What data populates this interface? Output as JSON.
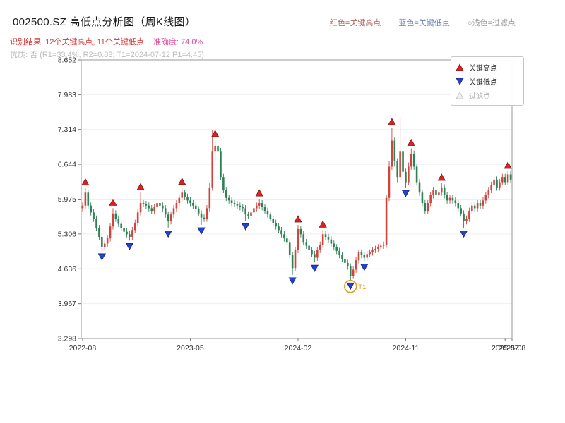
{
  "header": {
    "title": "002500.SZ 高低点分析图（周K线图）",
    "note_high": "红色=关键高点",
    "note_low": "蓝色=关键低点",
    "note_filtered": "○浅色=过滤点",
    "result_text": "识别结果: 12个关键高点, 11个关键低点",
    "accuracy_text": "准确度: 74.0%",
    "quality_text": "优质: 否 (R1=33.4%, R2=0.83; T1=2024-07-12 P1=4.45)"
  },
  "colors": {
    "result": "#d43636",
    "accuracy": "#df4e9b",
    "quality": "#bcbcbc",
    "note_high": "#b4605a",
    "note_low": "#6d80b8",
    "note_filtered": "#9a9a9a"
  },
  "chart_data": {
    "type": "candlestick",
    "symbol": "002500.SZ",
    "period": "weekly",
    "title": "002500.SZ 高低点分析图（周K线图）",
    "stats": {
      "key_highs_count": 12,
      "key_lows_count": 11,
      "accuracy_pct": 74.0,
      "premium": "否",
      "r1_pct": 33.4,
      "r2": 0.83,
      "t1_date": "2024-07-12",
      "p1": 4.45
    },
    "ylim": [
      3.298,
      8.652
    ],
    "y_ticks": [
      "8.652",
      "7.983",
      "7.314",
      "6.644",
      "5.975",
      "5.306",
      "4.636",
      "3.967",
      "3.298"
    ],
    "x_ticks": [
      {
        "week": 0,
        "label": "2022-08"
      },
      {
        "week": 39,
        "label": "2023-05"
      },
      {
        "week": 78,
        "label": "2024-02"
      },
      {
        "week": 117,
        "label": "2024-11"
      },
      {
        "week": 153,
        "label": "2025-07"
      },
      {
        "week": 156,
        "label": "2025-08"
      }
    ],
    "legend": [
      {
        "label": "关键高点",
        "type": "high"
      },
      {
        "label": "关键低点",
        "type": "low"
      },
      {
        "label": "过滤点",
        "type": "filtered"
      }
    ],
    "key_high_weeks": [
      1,
      11,
      21,
      36,
      48,
      64,
      78,
      87,
      112,
      119,
      130,
      154
    ],
    "key_low_weeks": [
      7,
      17,
      31,
      43,
      59,
      76,
      84,
      97,
      102,
      117,
      138
    ],
    "filtered_point": {
      "week": 97,
      "label": "T1",
      "value": 4.45
    },
    "colors": {
      "up": "#d1443c",
      "down": "#2e8055",
      "key_high": "#e02020",
      "key_low": "#2244cc",
      "filtered_fill": "#f2f2f2",
      "filtered_edge": "#bbbbbb",
      "annotation": "#e39a2d",
      "grid": "#efefef",
      "frame": "#9a9a9a",
      "tick_text": "#333333"
    },
    "candles": [
      [
        5.8,
        5.91,
        5.74,
        5.85
      ],
      [
        5.85,
        6.19,
        5.79,
        6.1
      ],
      [
        6.1,
        6.16,
        5.79,
        5.85
      ],
      [
        5.85,
        5.91,
        5.66,
        5.72
      ],
      [
        5.72,
        5.78,
        5.54,
        5.6
      ],
      [
        5.6,
        5.66,
        5.36,
        5.42
      ],
      [
        5.42,
        5.48,
        5.19,
        5.25
      ],
      [
        5.25,
        5.31,
        4.98,
        5.05
      ],
      [
        5.05,
        5.18,
        4.99,
        5.12
      ],
      [
        5.12,
        5.28,
        5.06,
        5.22
      ],
      [
        5.22,
        5.51,
        5.16,
        5.45
      ],
      [
        5.45,
        5.8,
        5.39,
        5.7
      ],
      [
        5.7,
        5.76,
        5.54,
        5.6
      ],
      [
        5.6,
        5.66,
        5.44,
        5.5
      ],
      [
        5.5,
        5.56,
        5.36,
        5.42
      ],
      [
        5.42,
        5.48,
        5.29,
        5.35
      ],
      [
        5.35,
        5.41,
        5.24,
        5.3
      ],
      [
        5.3,
        5.36,
        5.18,
        5.25
      ],
      [
        5.25,
        5.44,
        5.19,
        5.38
      ],
      [
        5.38,
        5.58,
        5.32,
        5.52
      ],
      [
        5.52,
        5.78,
        5.46,
        5.72
      ],
      [
        5.72,
        6.1,
        5.66,
        5.9
      ],
      [
        5.9,
        5.97,
        5.82,
        5.88
      ],
      [
        5.88,
        5.94,
        5.79,
        5.85
      ],
      [
        5.85,
        5.91,
        5.74,
        5.8
      ],
      [
        5.8,
        5.86,
        5.69,
        5.75
      ],
      [
        5.75,
        5.88,
        5.69,
        5.82
      ],
      [
        5.82,
        5.96,
        5.76,
        5.9
      ],
      [
        5.9,
        5.96,
        5.79,
        5.85
      ],
      [
        5.85,
        5.91,
        5.74,
        5.8
      ],
      [
        5.8,
        5.86,
        5.62,
        5.68
      ],
      [
        5.68,
        5.74,
        5.42,
        5.55
      ],
      [
        5.55,
        5.74,
        5.49,
        5.68
      ],
      [
        5.68,
        5.86,
        5.62,
        5.8
      ],
      [
        5.8,
        5.96,
        5.74,
        5.9
      ],
      [
        5.9,
        6.06,
        5.84,
        6.0
      ],
      [
        6.0,
        6.2,
        5.94,
        6.1
      ],
      [
        6.1,
        6.16,
        5.96,
        6.02
      ],
      [
        6.02,
        6.08,
        5.89,
        5.95
      ],
      [
        5.95,
        6.01,
        5.84,
        5.9
      ],
      [
        5.9,
        5.96,
        5.79,
        5.85
      ],
      [
        5.85,
        5.91,
        5.72,
        5.78
      ],
      [
        5.78,
        5.84,
        5.64,
        5.7
      ],
      [
        5.7,
        5.76,
        5.48,
        5.62
      ],
      [
        5.62,
        5.68,
        5.54,
        5.6
      ],
      [
        5.6,
        5.86,
        5.54,
        5.8
      ],
      [
        5.8,
        6.28,
        5.74,
        6.2
      ],
      [
        6.2,
        7.3,
        6.14,
        6.9
      ],
      [
        6.9,
        7.12,
        6.7,
        7.0
      ],
      [
        7.0,
        7.06,
        6.75,
        6.9
      ],
      [
        6.9,
        6.96,
        6.34,
        6.4
      ],
      [
        6.4,
        6.46,
        6.09,
        6.15
      ],
      [
        6.15,
        6.21,
        5.94,
        6.0
      ],
      [
        6.0,
        6.06,
        5.89,
        5.95
      ],
      [
        5.95,
        6.01,
        5.84,
        5.9
      ],
      [
        5.9,
        5.96,
        5.82,
        5.88
      ],
      [
        5.88,
        5.94,
        5.79,
        5.85
      ],
      [
        5.85,
        5.91,
        5.76,
        5.82
      ],
      [
        5.82,
        5.88,
        5.74,
        5.8
      ],
      [
        5.8,
        5.86,
        5.56,
        5.68
      ],
      [
        5.68,
        5.74,
        5.59,
        5.65
      ],
      [
        5.65,
        5.78,
        5.59,
        5.72
      ],
      [
        5.72,
        5.86,
        5.66,
        5.8
      ],
      [
        5.8,
        5.91,
        5.74,
        5.85
      ],
      [
        5.85,
        5.98,
        5.79,
        5.9
      ],
      [
        5.9,
        5.96,
        5.76,
        5.82
      ],
      [
        5.82,
        5.88,
        5.69,
        5.75
      ],
      [
        5.75,
        5.81,
        5.62,
        5.68
      ],
      [
        5.68,
        5.74,
        5.54,
        5.6
      ],
      [
        5.6,
        5.66,
        5.46,
        5.52
      ],
      [
        5.52,
        5.58,
        5.39,
        5.45
      ],
      [
        5.45,
        5.51,
        5.32,
        5.38
      ],
      [
        5.38,
        5.44,
        5.24,
        5.3
      ],
      [
        5.3,
        5.36,
        5.16,
        5.22
      ],
      [
        5.22,
        5.28,
        5.09,
        5.15
      ],
      [
        5.15,
        5.21,
        4.84,
        4.9
      ],
      [
        4.9,
        4.96,
        4.52,
        4.65
      ],
      [
        4.65,
        5.06,
        4.59,
        5.0
      ],
      [
        5.0,
        5.48,
        4.94,
        5.4
      ],
      [
        5.4,
        5.46,
        5.24,
        5.3
      ],
      [
        5.3,
        5.36,
        5.09,
        5.15
      ],
      [
        5.15,
        5.21,
        5.02,
        5.08
      ],
      [
        5.08,
        5.14,
        4.94,
        5.0
      ],
      [
        5.0,
        5.06,
        4.86,
        4.92
      ],
      [
        4.92,
        4.98,
        4.76,
        4.85
      ],
      [
        4.85,
        5.06,
        4.79,
        5.0
      ],
      [
        5.0,
        5.16,
        4.94,
        5.1
      ],
      [
        5.1,
        5.38,
        5.04,
        5.3
      ],
      [
        5.3,
        5.36,
        5.19,
        5.25
      ],
      [
        5.25,
        5.31,
        5.14,
        5.2
      ],
      [
        5.2,
        5.26,
        5.06,
        5.12
      ],
      [
        5.12,
        5.18,
        4.99,
        5.05
      ],
      [
        5.05,
        5.11,
        4.92,
        4.98
      ],
      [
        4.98,
        5.04,
        4.84,
        4.9
      ],
      [
        4.9,
        4.96,
        4.76,
        4.82
      ],
      [
        4.82,
        4.88,
        4.69,
        4.75
      ],
      [
        4.75,
        4.81,
        4.62,
        4.68
      ],
      [
        4.68,
        4.74,
        4.42,
        4.5
      ],
      [
        4.5,
        4.68,
        4.44,
        4.62
      ],
      [
        4.62,
        4.86,
        4.56,
        4.8
      ],
      [
        4.8,
        5.01,
        4.74,
        4.95
      ],
      [
        4.95,
        5.01,
        4.84,
        4.9
      ],
      [
        4.9,
        4.96,
        4.78,
        4.85
      ],
      [
        4.85,
        4.98,
        4.79,
        4.92
      ],
      [
        4.92,
        5.01,
        4.86,
        4.95
      ],
      [
        4.95,
        5.06,
        4.89,
        5.0
      ],
      [
        5.0,
        5.08,
        4.94,
        5.02
      ],
      [
        5.02,
        5.11,
        4.96,
        5.05
      ],
      [
        5.05,
        5.14,
        4.99,
        5.08
      ],
      [
        5.08,
        5.16,
        5.02,
        5.1
      ],
      [
        5.1,
        6.06,
        5.04,
        6.0
      ],
      [
        6.0,
        6.7,
        5.94,
        6.6
      ],
      [
        6.6,
        7.35,
        6.54,
        7.1
      ],
      [
        7.1,
        7.16,
        6.6,
        6.7
      ],
      [
        6.7,
        6.76,
        6.3,
        6.4
      ],
      [
        6.4,
        7.52,
        6.34,
        6.9
      ],
      [
        6.9,
        6.96,
        6.4,
        6.5
      ],
      [
        6.5,
        6.56,
        6.2,
        6.3
      ],
      [
        6.3,
        6.68,
        6.24,
        6.6
      ],
      [
        6.6,
        6.95,
        6.54,
        6.85
      ],
      [
        6.85,
        6.91,
        6.54,
        6.6
      ],
      [
        6.6,
        6.66,
        6.24,
        6.3
      ],
      [
        6.3,
        6.36,
        6.04,
        6.1
      ],
      [
        6.1,
        6.16,
        5.84,
        5.9
      ],
      [
        5.9,
        5.96,
        5.69,
        5.75
      ],
      [
        5.75,
        5.96,
        5.69,
        5.9
      ],
      [
        5.9,
        6.11,
        5.84,
        6.05
      ],
      [
        6.05,
        6.21,
        5.99,
        6.15
      ],
      [
        6.15,
        6.21,
        5.99,
        6.05
      ],
      [
        6.05,
        6.16,
        5.99,
        6.1
      ],
      [
        6.1,
        6.28,
        6.04,
        6.2
      ],
      [
        6.2,
        6.26,
        5.99,
        6.05
      ],
      [
        6.05,
        6.11,
        5.89,
        5.95
      ],
      [
        5.95,
        6.06,
        5.89,
        6.0
      ],
      [
        6.0,
        6.06,
        5.89,
        5.95
      ],
      [
        5.95,
        6.01,
        5.84,
        5.9
      ],
      [
        5.9,
        5.96,
        5.74,
        5.8
      ],
      [
        5.8,
        5.86,
        5.64,
        5.7
      ],
      [
        5.7,
        5.76,
        5.42,
        5.55
      ],
      [
        5.55,
        5.66,
        5.49,
        5.6
      ],
      [
        5.6,
        5.81,
        5.54,
        5.75
      ],
      [
        5.75,
        5.91,
        5.69,
        5.85
      ],
      [
        5.85,
        5.91,
        5.74,
        5.8
      ],
      [
        5.8,
        5.96,
        5.74,
        5.9
      ],
      [
        5.9,
        5.96,
        5.79,
        5.85
      ],
      [
        5.85,
        6.01,
        5.79,
        5.95
      ],
      [
        5.95,
        6.11,
        5.89,
        6.05
      ],
      [
        6.05,
        6.21,
        5.99,
        6.15
      ],
      [
        6.15,
        6.31,
        6.09,
        6.25
      ],
      [
        6.25,
        6.41,
        6.19,
        6.35
      ],
      [
        6.35,
        6.41,
        6.14,
        6.2
      ],
      [
        6.2,
        6.36,
        6.14,
        6.3
      ],
      [
        6.3,
        6.46,
        6.24,
        6.4
      ],
      [
        6.4,
        6.46,
        6.24,
        6.3
      ],
      [
        6.3,
        6.51,
        6.24,
        6.45
      ],
      [
        6.45,
        6.51,
        6.29,
        6.35
      ]
    ]
  }
}
